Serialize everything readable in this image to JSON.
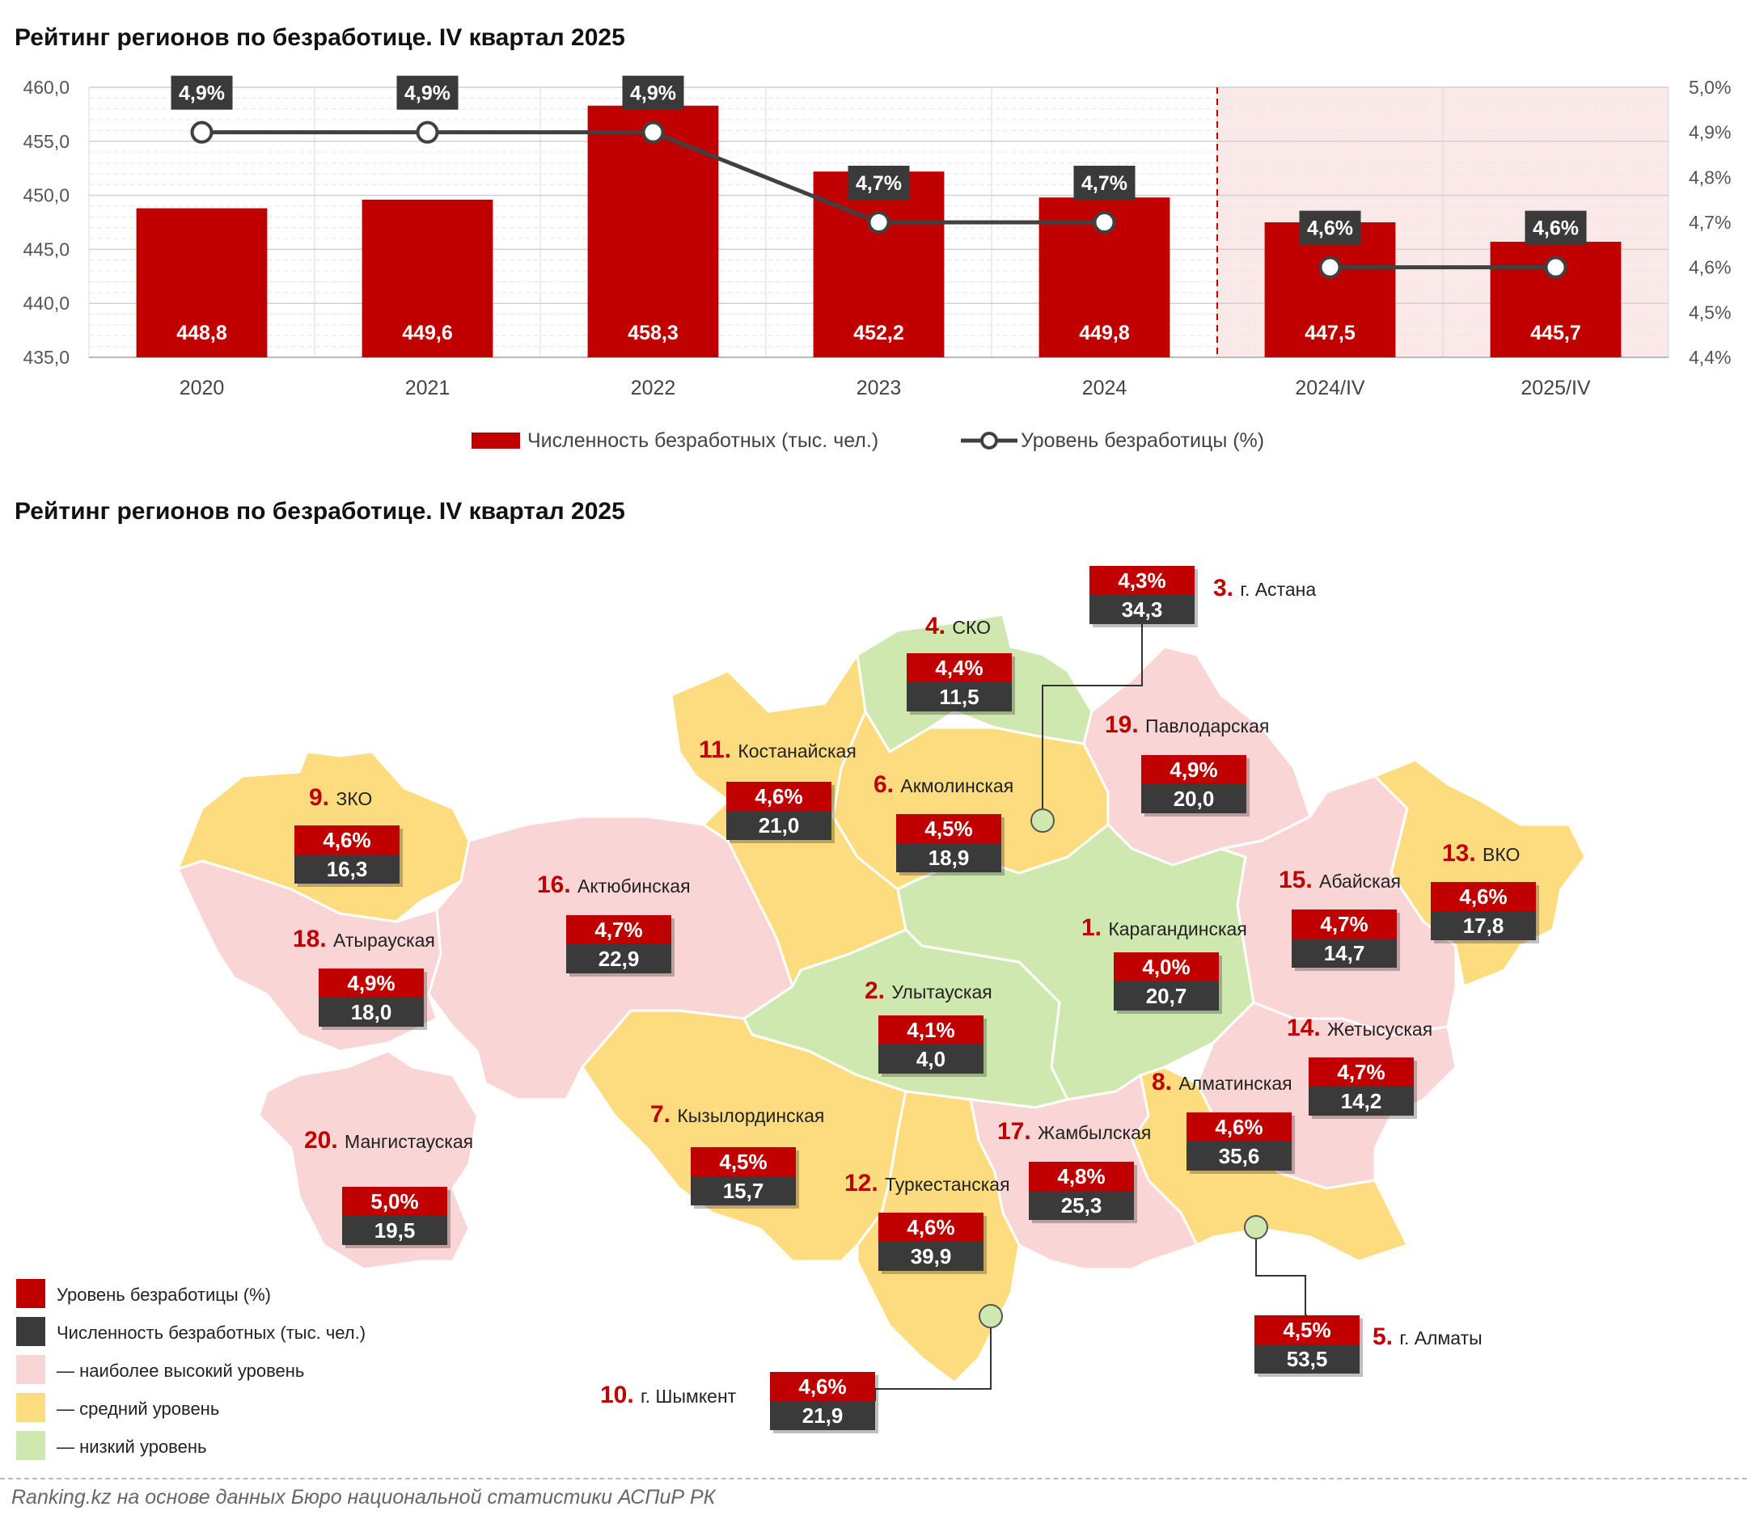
{
  "chart_title": "Рейтинг регионов по безработице. IV квартал 2025",
  "map_title": "Рейтинг регионов по безработице. IV квартал 2025",
  "colors": {
    "bar": "#c00000",
    "line": "#404040",
    "label_bg": "#3a3a3a",
    "high": "#fad5d5",
    "mid": "#fddc80",
    "low": "#cfe8b0",
    "rank": "#c00000",
    "highlight_bg": "#fbe9e9"
  },
  "chart_data": {
    "type": "bar",
    "categories": [
      "2020",
      "2021",
      "2022",
      "2023",
      "2024",
      "2024/IV",
      "2025/IV"
    ],
    "series": [
      {
        "name": "Численность безработных (тыс. чел.)",
        "type": "bar",
        "axis": "left",
        "values": [
          448.8,
          449.6,
          458.3,
          452.2,
          449.8,
          447.5,
          445.7
        ],
        "labels": [
          "448,8",
          "449,6",
          "458,3",
          "452,2",
          "449,8",
          "447,5",
          "445,7"
        ]
      },
      {
        "name": "Уровень безработицы (%)",
        "type": "line",
        "axis": "right",
        "values": [
          4.9,
          4.9,
          4.9,
          4.7,
          4.7,
          4.6,
          4.6
        ],
        "labels": [
          "4,9%",
          "4,9%",
          "4,9%",
          "4,7%",
          "4,7%",
          "4,6%",
          "4,6%"
        ]
      }
    ],
    "y_left": {
      "range": [
        435,
        460
      ],
      "ticks": [
        "435,0",
        "440,0",
        "445,0",
        "450,0",
        "455,0",
        "460,0"
      ]
    },
    "y_right": {
      "range": [
        4.4,
        5.0
      ],
      "ticks": [
        "4,4%",
        "4,5%",
        "4,6%",
        "4,7%",
        "4,8%",
        "4,9%",
        "5,0%"
      ]
    },
    "legend": [
      "Численность безработных (тыс. чел.)",
      "Уровень безработицы (%)"
    ],
    "legend_position": "bottom",
    "highlight_categories": [
      "2024/IV",
      "2025/IV"
    ],
    "grid": true
  },
  "regions": [
    {
      "rank": "1.",
      "name": "Карагандинская",
      "rate": "4,0%",
      "count": "20,7"
    },
    {
      "rank": "2.",
      "name": "Улытауская",
      "rate": "4,1%",
      "count": "4,0"
    },
    {
      "rank": "3.",
      "name": "г. Астана",
      "rate": "4,3%",
      "count": "34,3"
    },
    {
      "rank": "4.",
      "name": "СКО",
      "rate": "4,4%",
      "count": "11,5"
    },
    {
      "rank": "5.",
      "name": "г. Алматы",
      "rate": "4,5%",
      "count": "53,5"
    },
    {
      "rank": "6.",
      "name": "Акмолинская",
      "rate": "4,5%",
      "count": "18,9"
    },
    {
      "rank": "7.",
      "name": "Кызылординская",
      "rate": "4,5%",
      "count": "15,7"
    },
    {
      "rank": "8.",
      "name": "Алматинская",
      "rate": "4,6%",
      "count": "35,6"
    },
    {
      "rank": "9.",
      "name": "ЗКО",
      "rate": "4,6%",
      "count": "16,3"
    },
    {
      "rank": "10.",
      "name": "г. Шымкент",
      "rate": "4,6%",
      "count": "21,9"
    },
    {
      "rank": "11.",
      "name": "Костанайская",
      "rate": "4,6%",
      "count": "21,0"
    },
    {
      "rank": "12.",
      "name": "Туркестанская",
      "rate": "4,6%",
      "count": "39,9"
    },
    {
      "rank": "13.",
      "name": "ВКО",
      "rate": "4,6%",
      "count": "17,8"
    },
    {
      "rank": "14.",
      "name": "Жетысуская",
      "rate": "4,7%",
      "count": "14,2"
    },
    {
      "rank": "15.",
      "name": "Абайская",
      "rate": "4,7%",
      "count": "14,7"
    },
    {
      "rank": "16.",
      "name": "Актюбинская",
      "rate": "4,7%",
      "count": "22,9"
    },
    {
      "rank": "17.",
      "name": "Жамбылская",
      "rate": "4,8%",
      "count": "25,3"
    },
    {
      "rank": "18.",
      "name": "Атырауская",
      "rate": "4,9%",
      "count": "18,0"
    },
    {
      "rank": "19.",
      "name": "Павлодарская",
      "rate": "4,9%",
      "count": "20,0"
    },
    {
      "rank": "20.",
      "name": "Мангистауская",
      "rate": "5,0%",
      "count": "19,5"
    }
  ],
  "map_legend": [
    {
      "label": "Уровень безработицы (%)",
      "color": "#c00000"
    },
    {
      "label": "Численность безработных (тыс. чел.)",
      "color": "#3a3a3a"
    },
    {
      "label": "— наиболее высокий уровень",
      "color": "#fad5d5"
    },
    {
      "label": "— средний уровень",
      "color": "#fddc80"
    },
    {
      "label": "— низкий уровень",
      "color": "#cfe8b0"
    }
  ],
  "source": "Ranking.kz на основе данных Бюро национальной статистики АСПиР РК"
}
